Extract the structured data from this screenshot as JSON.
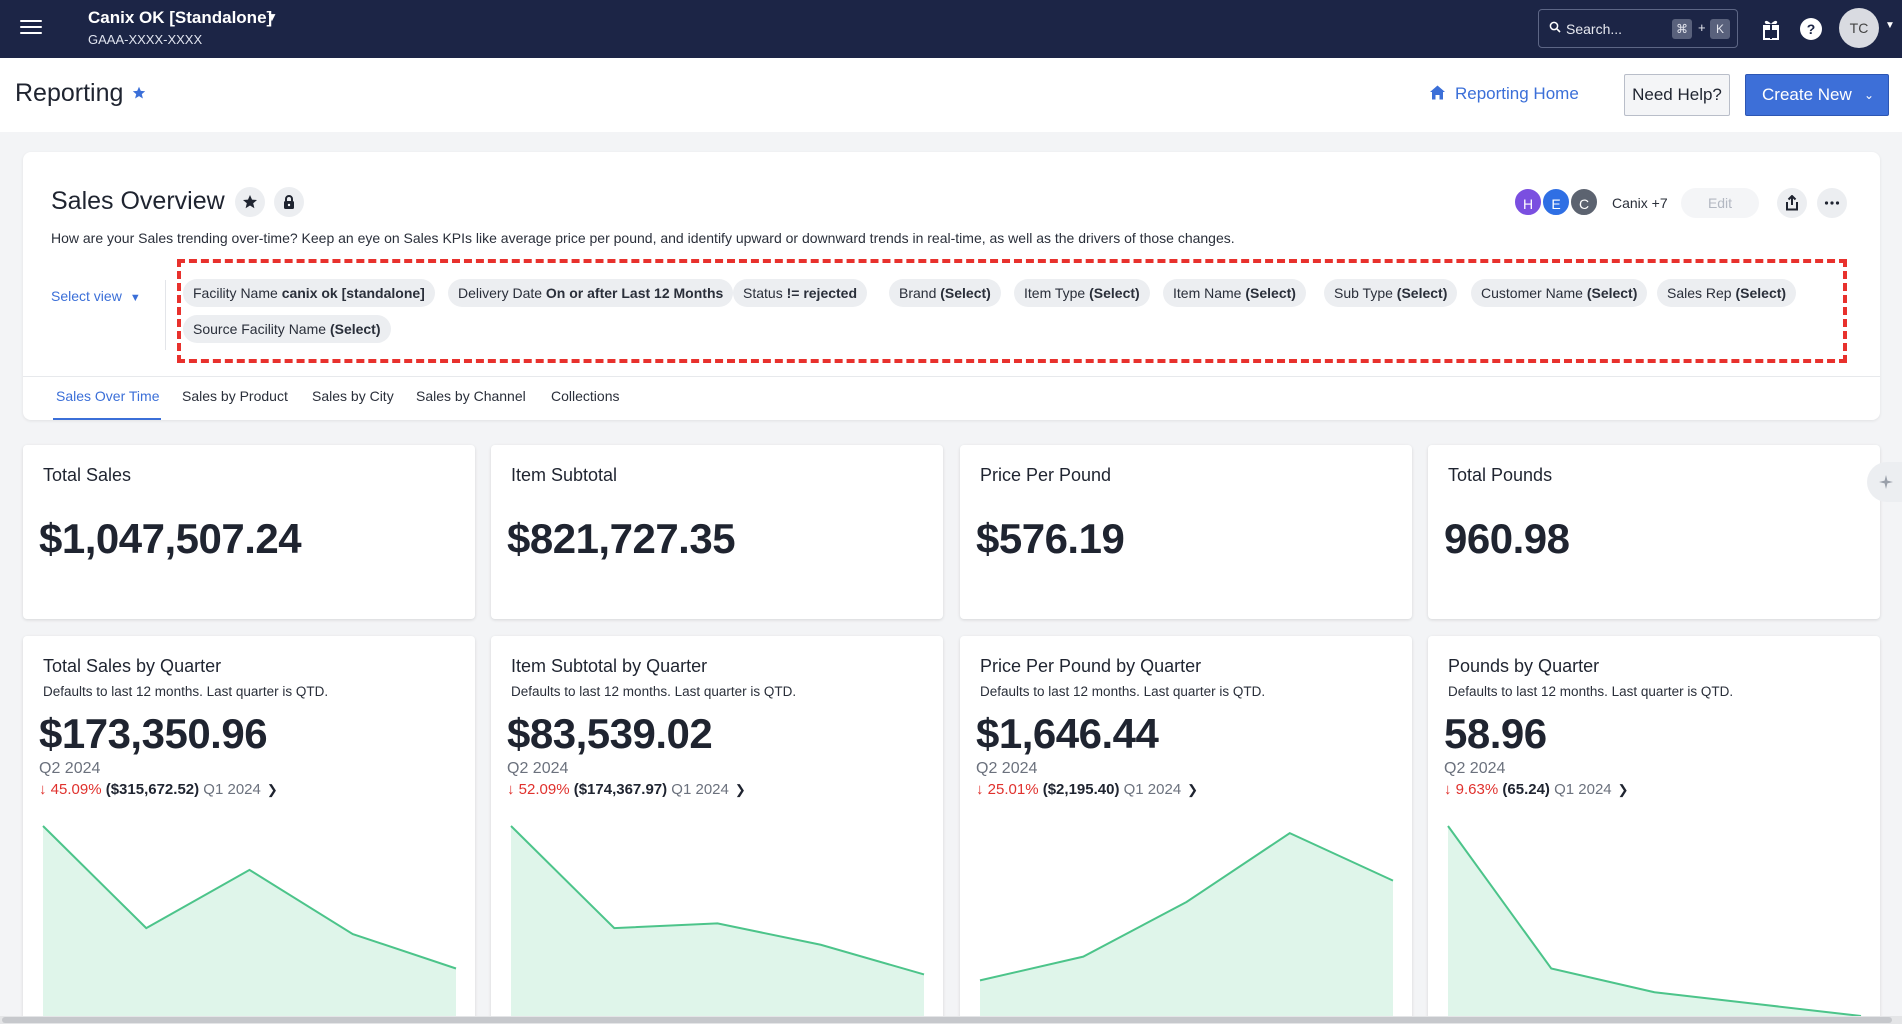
{
  "topbar": {
    "org_name": "Canix OK [Standalone]",
    "org_id": "GAAA-XXXX-XXXX",
    "search_placeholder": "Search...",
    "kbd_cmd": "⌘",
    "kbd_plus": "+",
    "kbd_k": "K",
    "help": "?",
    "user_initials": "TC"
  },
  "page": {
    "title": "Reporting",
    "reporting_home": "Reporting Home",
    "need_help": "Need Help?",
    "create_new": "Create New"
  },
  "overview": {
    "title": "Sales Overview",
    "description": "How are your Sales trending over-time? Keep an eye on Sales KPIs like average price per pound, and identify upward or downward trends in real-time, as well as the drivers of those changes.",
    "select_view": "Select view",
    "collaborators": [
      "H",
      "E",
      "C"
    ],
    "collaborator_colors": [
      "#7a4fe0",
      "#2f6fe4",
      "#5c6370"
    ],
    "collaborators_text": "Canix +7",
    "edit": "Edit",
    "filters": [
      {
        "label": "Facility Name",
        "value": "canix ok [standalone]"
      },
      {
        "label": "Delivery Date",
        "value": "On or after Last 12 Months"
      },
      {
        "label": "Status",
        "value": "!= rejected"
      },
      {
        "label": "Brand",
        "value": "(Select)"
      },
      {
        "label": "Item Type",
        "value": "(Select)"
      },
      {
        "label": "Item Name",
        "value": "(Select)"
      },
      {
        "label": "Sub Type",
        "value": "(Select)"
      },
      {
        "label": "Customer Name",
        "value": "(Select)"
      },
      {
        "label": "Sales Rep",
        "value": "(Select)"
      },
      {
        "label": "Source Facility Name",
        "value": "(Select)"
      }
    ],
    "tabs": [
      "Sales Over Time",
      "Sales by Product",
      "Sales by City",
      "Sales by Channel",
      "Collections"
    ]
  },
  "kpis": [
    {
      "title": "Total Sales",
      "value": "$1,047,507.24"
    },
    {
      "title": "Item Subtotal",
      "value": "$821,727.35"
    },
    {
      "title": "Price Per Pound",
      "value": "$576.19"
    },
    {
      "title": "Total Pounds",
      "value": "960.98"
    }
  ],
  "quarter_cards": [
    {
      "title": "Total Sales by Quarter",
      "subtitle": "Defaults to last 12 months. Last quarter is QTD.",
      "value": "$173,350.96",
      "period": "Q2 2024",
      "change_pct": "45.09%",
      "change_abs": "($315,672.52)",
      "prev_period": "Q1 2024"
    },
    {
      "title": "Item Subtotal by Quarter",
      "subtitle": "Defaults to last 12 months. Last quarter is QTD.",
      "value": "$83,539.02",
      "period": "Q2 2024",
      "change_pct": "52.09%",
      "change_abs": "($174,367.97)",
      "prev_period": "Q1 2024"
    },
    {
      "title": "Price Per Pound by Quarter",
      "subtitle": "Defaults to last 12 months. Last quarter is QTD.",
      "value": "$1,646.44",
      "period": "Q2 2024",
      "change_pct": "25.01%",
      "change_abs": "($2,195.40)",
      "prev_period": "Q1 2024"
    },
    {
      "title": "Pounds by Quarter",
      "subtitle": "Defaults to last 12 months. Last quarter is QTD.",
      "value": "58.96",
      "period": "Q2 2024",
      "change_pct": "9.63%",
      "change_abs": "(65.24)",
      "prev_period": "Q1 2024"
    }
  ],
  "chart_data": [
    {
      "type": "area",
      "values": [
        100,
        14,
        63,
        9,
        -20
      ],
      "color": "#4cc48a",
      "fill": "#dff5ea"
    },
    {
      "type": "area",
      "values": [
        100,
        14,
        18,
        0,
        -25
      ],
      "color": "#4cc48a",
      "fill": "#dff5ea"
    },
    {
      "type": "area",
      "values": [
        -30,
        -10,
        36,
        94,
        54
      ],
      "color": "#4cc48a",
      "fill": "#dff5ea"
    },
    {
      "type": "area",
      "values": [
        100,
        -20,
        -40,
        -50,
        -60
      ],
      "color": "#4cc48a",
      "fill": "#dff5ea"
    }
  ],
  "colors": {
    "accent": "#3b6fd8",
    "navbar": "#1c2546",
    "negative": "#e0312d",
    "filter_highlight": "#e8312d"
  }
}
